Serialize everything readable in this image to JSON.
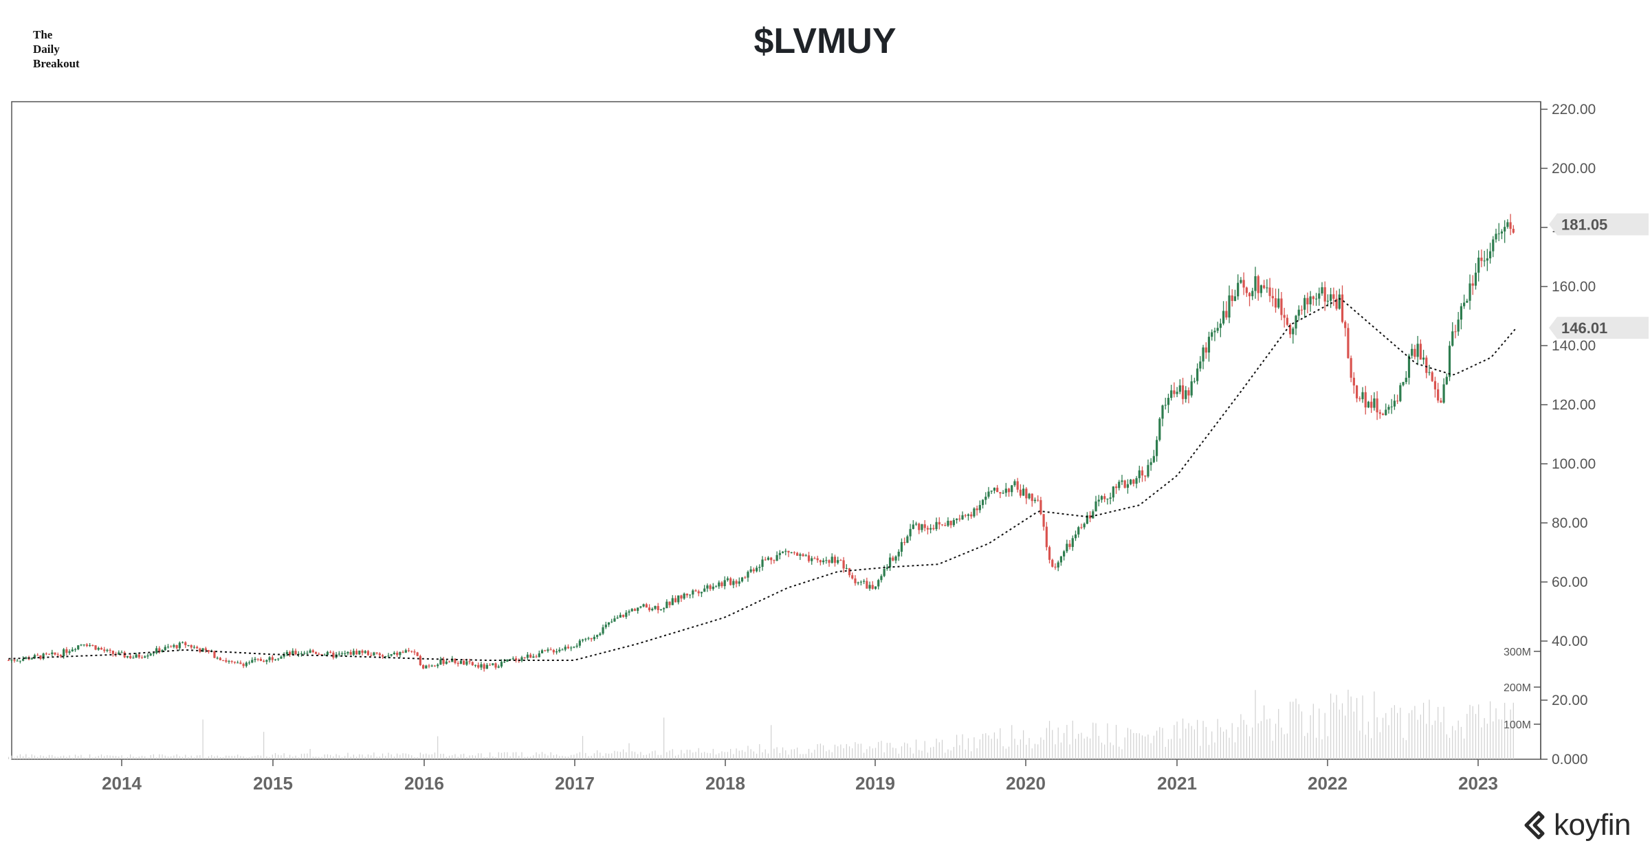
{
  "brand": {
    "line1": "The",
    "line2": "Daily",
    "line3": "Breakout"
  },
  "source_logo": "koyfin",
  "chart_data": {
    "type": "candlestick",
    "title": "$LVMUY",
    "frequency": "weekly",
    "x_range": [
      "2013-04",
      "2023-04"
    ],
    "x_ticks": [
      "2014",
      "2015",
      "2016",
      "2017",
      "2018",
      "2019",
      "2020",
      "2021",
      "2022",
      "2023"
    ],
    "y_ticks": [
      "0.000",
      "20.00",
      "40.00",
      "60.00",
      "80.00",
      "100.00",
      "120.00",
      "140.00",
      "160.00",
      "180.00",
      "200.00",
      "220.00"
    ],
    "ylim": [
      0,
      220
    ],
    "volume_ticks": [
      "100M",
      "200M",
      "300M"
    ],
    "last_price": "181.05",
    "moving_average_value": "146.01",
    "colors": {
      "up": "#2e7d4f",
      "down": "#d9534f",
      "axis": "#555555",
      "volume": "#d0d0d0",
      "ma": "#111111",
      "price_tag_bg": "#e8e8e8"
    },
    "price_series": [
      [
        "2013-04",
        33.5
      ],
      [
        "2013-06",
        34.5
      ],
      [
        "2013-08",
        35.5
      ],
      [
        "2013-10",
        39.5
      ],
      [
        "2013-12",
        36.0
      ],
      [
        "2014-02",
        34.5
      ],
      [
        "2014-04",
        37.0
      ],
      [
        "2014-06",
        39.0
      ],
      [
        "2014-08",
        36.0
      ],
      [
        "2014-10",
        32.0
      ],
      [
        "2014-12",
        33.5
      ],
      [
        "2015-02",
        35.5
      ],
      [
        "2015-04",
        36.5
      ],
      [
        "2015-06",
        35.0
      ],
      [
        "2015-08",
        36.5
      ],
      [
        "2015-10",
        34.5
      ],
      [
        "2015-12",
        37.0
      ],
      [
        "2016-01",
        31.5
      ],
      [
        "2016-03",
        33.5
      ],
      [
        "2016-06",
        31.0
      ],
      [
        "2016-08",
        33.5
      ],
      [
        "2016-10",
        35.5
      ],
      [
        "2016-12",
        37.5
      ],
      [
        "2017-02",
        40.0
      ],
      [
        "2017-04",
        46.5
      ],
      [
        "2017-06",
        51.5
      ],
      [
        "2017-08",
        51.5
      ],
      [
        "2017-10",
        56.0
      ],
      [
        "2017-12",
        59.0
      ],
      [
        "2018-02",
        60.5
      ],
      [
        "2018-04",
        67.0
      ],
      [
        "2018-06",
        70.5
      ],
      [
        "2018-08",
        66.5
      ],
      [
        "2018-10",
        68.0
      ],
      [
        "2018-11",
        61.5
      ],
      [
        "2019-01",
        57.5
      ],
      [
        "2019-02",
        66.0
      ],
      [
        "2019-04",
        79.0
      ],
      [
        "2019-06",
        79.0
      ],
      [
        "2019-08",
        81.5
      ],
      [
        "2019-10",
        89.5
      ],
      [
        "2019-12",
        92.5
      ],
      [
        "2020-02",
        86.0
      ],
      [
        "2020-03",
        64.0
      ],
      [
        "2020-05",
        76.0
      ],
      [
        "2020-07",
        89.0
      ],
      [
        "2020-09",
        93.5
      ],
      [
        "2020-11",
        99.5
      ],
      [
        "2020-12",
        122.5
      ],
      [
        "2021-02",
        125.0
      ],
      [
        "2021-04",
        147.0
      ],
      [
        "2021-06",
        159.0
      ],
      [
        "2021-08",
        161.0
      ],
      [
        "2021-10",
        147.0
      ],
      [
        "2021-12",
        158.0
      ],
      [
        "2022-02",
        155.0
      ],
      [
        "2022-03",
        125.0
      ],
      [
        "2022-05",
        118.5
      ],
      [
        "2022-06",
        117.5
      ],
      [
        "2022-08",
        140.0
      ],
      [
        "2022-10",
        119.5
      ],
      [
        "2022-11",
        145.5
      ],
      [
        "2023-01",
        168.0
      ],
      [
        "2023-02",
        175.0
      ],
      [
        "2023-04",
        181.0
      ]
    ],
    "moving_average": [
      [
        "2013-04",
        34.0
      ],
      [
        "2014-01",
        35.5
      ],
      [
        "2014-06",
        37.0
      ],
      [
        "2015-01",
        35.5
      ],
      [
        "2015-06",
        35.0
      ],
      [
        "2016-01",
        34.0
      ],
      [
        "2016-06",
        33.5
      ],
      [
        "2017-01",
        33.5
      ],
      [
        "2017-06",
        39.0
      ],
      [
        "2018-01",
        48.0
      ],
      [
        "2018-06",
        58.0
      ],
      [
        "2018-10",
        63.5
      ],
      [
        "2019-02",
        65.0
      ],
      [
        "2019-06",
        66.0
      ],
      [
        "2019-10",
        73.0
      ],
      [
        "2020-02",
        84.0
      ],
      [
        "2020-06",
        82.0
      ],
      [
        "2020-10",
        86.0
      ],
      [
        "2021-01",
        96.0
      ],
      [
        "2021-06",
        124.0
      ],
      [
        "2021-10",
        147.0
      ],
      [
        "2022-02",
        156.0
      ],
      [
        "2022-05",
        145.0
      ],
      [
        "2022-08",
        134.0
      ],
      [
        "2022-11",
        130.0
      ],
      [
        "2023-02",
        136.0
      ],
      [
        "2023-04",
        146.0
      ]
    ],
    "volume_profile": [
      [
        "2013-04",
        6
      ],
      [
        "2014-06",
        6
      ],
      [
        "2015-06",
        8
      ],
      [
        "2016-06",
        8
      ],
      [
        "2017-06",
        12
      ],
      [
        "2018-06",
        18
      ],
      [
        "2019-06",
        25
      ],
      [
        "2020-03",
        48
      ],
      [
        "2020-09",
        40
      ],
      [
        "2021-06",
        55
      ],
      [
        "2021-09",
        70
      ],
      [
        "2022-03",
        85
      ],
      [
        "2022-09",
        75
      ],
      [
        "2023-01",
        80
      ],
      [
        "2023-04",
        70
      ]
    ]
  }
}
